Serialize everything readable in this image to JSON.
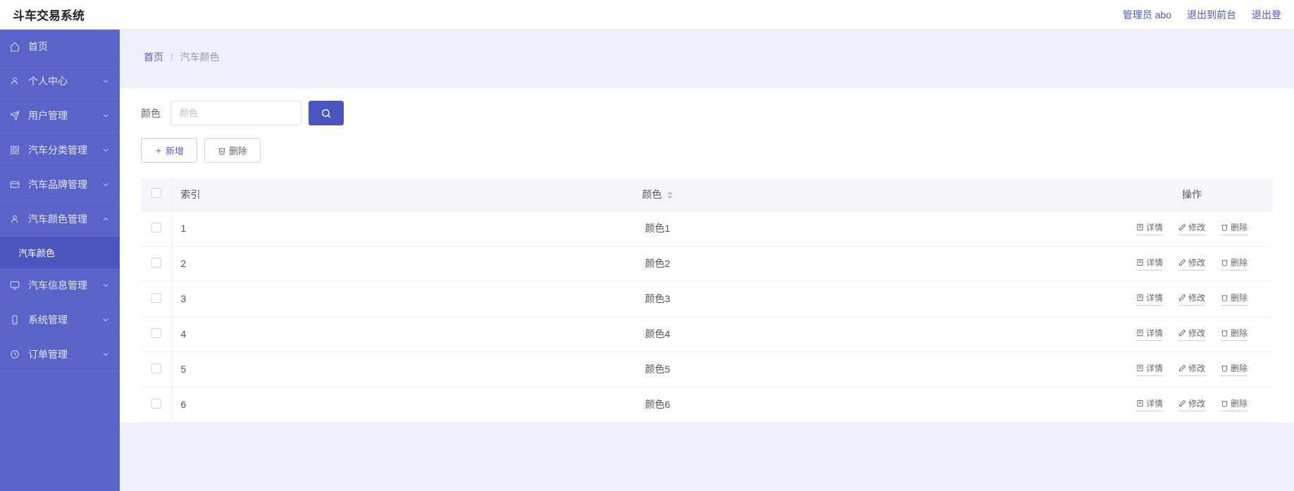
{
  "topbar": {
    "title": "斗车交易系统",
    "admin_label": "管理员 abo",
    "logout_front": "退出到前台",
    "logout": "退出登"
  },
  "sidebar": {
    "items": [
      {
        "label": "首页",
        "icon": "home"
      },
      {
        "label": "个人中心",
        "icon": "user",
        "chev": "down"
      },
      {
        "label": "用户管理",
        "icon": "send",
        "chev": "down"
      },
      {
        "label": "汽车分类管理",
        "icon": "grid",
        "chev": "down"
      },
      {
        "label": "汽车品牌管理",
        "icon": "card",
        "chev": "down"
      },
      {
        "label": "汽车颜色管理",
        "icon": "user",
        "chev": "up"
      },
      {
        "label": "汽车信息管理",
        "icon": "monitor",
        "chev": "down"
      },
      {
        "label": "系统管理",
        "icon": "phone",
        "chev": "down"
      },
      {
        "label": "订单管理",
        "icon": "clock",
        "chev": "down"
      }
    ],
    "submenu_label": "汽车颜色"
  },
  "breadcrumb": {
    "home": "首页",
    "current": "汽车颜色"
  },
  "filter": {
    "label": "颜色",
    "placeholder": "颜色"
  },
  "buttons": {
    "add": "新增",
    "delete": "删除"
  },
  "table": {
    "headers": {
      "index": "索引",
      "color": "颜色",
      "op": "操作"
    },
    "op_labels": {
      "detail": "详情",
      "edit": "修改",
      "delete": "删除"
    },
    "rows": [
      {
        "index": "1",
        "color": "颜色1"
      },
      {
        "index": "2",
        "color": "颜色2"
      },
      {
        "index": "3",
        "color": "颜色3"
      },
      {
        "index": "4",
        "color": "颜色4"
      },
      {
        "index": "5",
        "color": "颜色5"
      },
      {
        "index": "6",
        "color": "颜色6"
      }
    ]
  },
  "colors": {
    "primary": "#4a55c0",
    "sidebar_bg": "#5a63c7",
    "page_bg": "#eef0fb"
  }
}
